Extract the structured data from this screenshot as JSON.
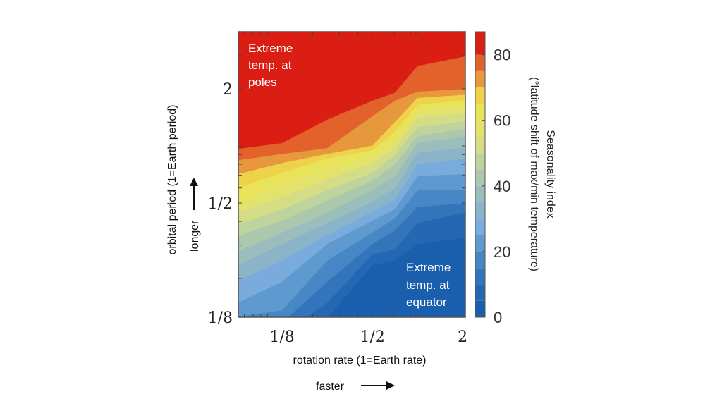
{
  "chart_data": {
    "type": "contour",
    "xlabel": "rotation rate (1=Earth rate)",
    "ylabel": "orbital period (1=Earth period)",
    "x_scale": "log2",
    "y_scale": "log2",
    "xlim_log2": [
      -3.97,
      1.06
    ],
    "ylim_log2": [
      -3,
      2
    ],
    "x_ticks": [
      {
        "log2": -3,
        "label": "1/8"
      },
      {
        "log2": -1,
        "label": "1/2"
      },
      {
        "log2": 1,
        "label": "2"
      }
    ],
    "y_ticks": [
      {
        "log2": -3,
        "label": "1/8"
      },
      {
        "log2": -1,
        "label": "1/2"
      },
      {
        "log2": 1,
        "label": "2"
      }
    ],
    "x_arrow_label": "faster",
    "y_arrow_label": "longer",
    "annotations": {
      "poles": [
        "Extreme",
        "temp. at",
        "poles"
      ],
      "equator": [
        "Extreme",
        "temp. at",
        "equator"
      ]
    },
    "colorbar": {
      "label_line1": "Seasonality index",
      "label_line2": "(°latitude shift of max/min temperature)",
      "range": [
        0,
        87
      ],
      "ticks": [
        "0",
        "20",
        "40",
        "60",
        "80"
      ],
      "tick_values": [
        0,
        20,
        40,
        60,
        80
      ]
    },
    "band_colors": [
      "#1a5fad",
      "#2468b4",
      "#3275bb",
      "#4787c5",
      "#5e99d0",
      "#79acdc",
      "#8cb4c9",
      "#9bbebc",
      "#abc7ad",
      "#bfd39d",
      "#d4dd86",
      "#e2e26c",
      "#e9e35a",
      "#eed24a",
      "#e8983c",
      "#e3622b",
      "#da1e14"
    ],
    "x_log2": [
      -4,
      -3,
      -2,
      -1,
      -0.5,
      0,
      1.06
    ],
    "contours": [
      {
        "level": 5,
        "y_log2": [
          -3.7,
          -3.5,
          -3.02,
          -2.09,
          -2.0,
          -1.72,
          -1.6
        ]
      },
      {
        "level": 10,
        "y_log2": [
          -3.5,
          -3.3,
          -2.75,
          -1.9,
          -1.81,
          -1.35,
          -1.15
        ]
      },
      {
        "level": 15,
        "y_log2": [
          -3.3,
          -3.1,
          -2.38,
          -1.72,
          -1.48,
          -1.07,
          -1.0
        ]
      },
      {
        "level": 20,
        "y_log2": [
          -3.0,
          -2.88,
          -2.01,
          -1.52,
          -1.27,
          -0.78,
          -0.78
        ]
      },
      {
        "level": 25,
        "y_log2": [
          -2.77,
          -2.38,
          -1.72,
          -1.31,
          -1.11,
          -0.53,
          -0.49
        ]
      },
      {
        "level": 30,
        "y_log2": [
          -2.4,
          -2.01,
          -1.56,
          -1.15,
          -0.94,
          -0.32,
          -0.22
        ]
      },
      {
        "level": 35,
        "y_log2": [
          -2.12,
          -1.72,
          -1.35,
          -0.98,
          -0.74,
          -0.12,
          -0.02
        ]
      },
      {
        "level": 40,
        "y_log2": [
          -1.87,
          -1.52,
          -1.17,
          -0.78,
          -0.53,
          0.05,
          0.17
        ]
      },
      {
        "level": 45,
        "y_log2": [
          -1.6,
          -1.31,
          -0.96,
          -0.61,
          -0.32,
          0.17,
          0.31
        ]
      },
      {
        "level": 50,
        "y_log2": [
          -1.39,
          -1.11,
          -0.78,
          -0.47,
          -0.16,
          0.33,
          0.44
        ]
      },
      {
        "level": 55,
        "y_log2": [
          -1.19,
          -0.9,
          -0.59,
          -0.3,
          -0.04,
          0.5,
          0.58
        ]
      },
      {
        "level": 60,
        "y_log2": [
          -1.02,
          -0.67,
          -0.41,
          -0.18,
          0.09,
          0.62,
          0.7
        ]
      },
      {
        "level": 65,
        "y_log2": [
          -0.76,
          -0.47,
          -0.22,
          -0.08,
          0.25,
          0.72,
          0.81
        ]
      },
      {
        "level": 70,
        "y_log2": [
          -0.51,
          -0.3,
          -0.14,
          0.005,
          0.42,
          0.84,
          0.9
        ]
      },
      {
        "level": 75,
        "y_log2": [
          -0.26,
          -0.14,
          -0.04,
          0.52,
          0.79,
          0.95,
          1.0
        ]
      },
      {
        "level": 80,
        "y_log2": [
          -0.06,
          0.05,
          0.46,
          0.79,
          0.93,
          1.4,
          1.58
        ]
      }
    ]
  }
}
